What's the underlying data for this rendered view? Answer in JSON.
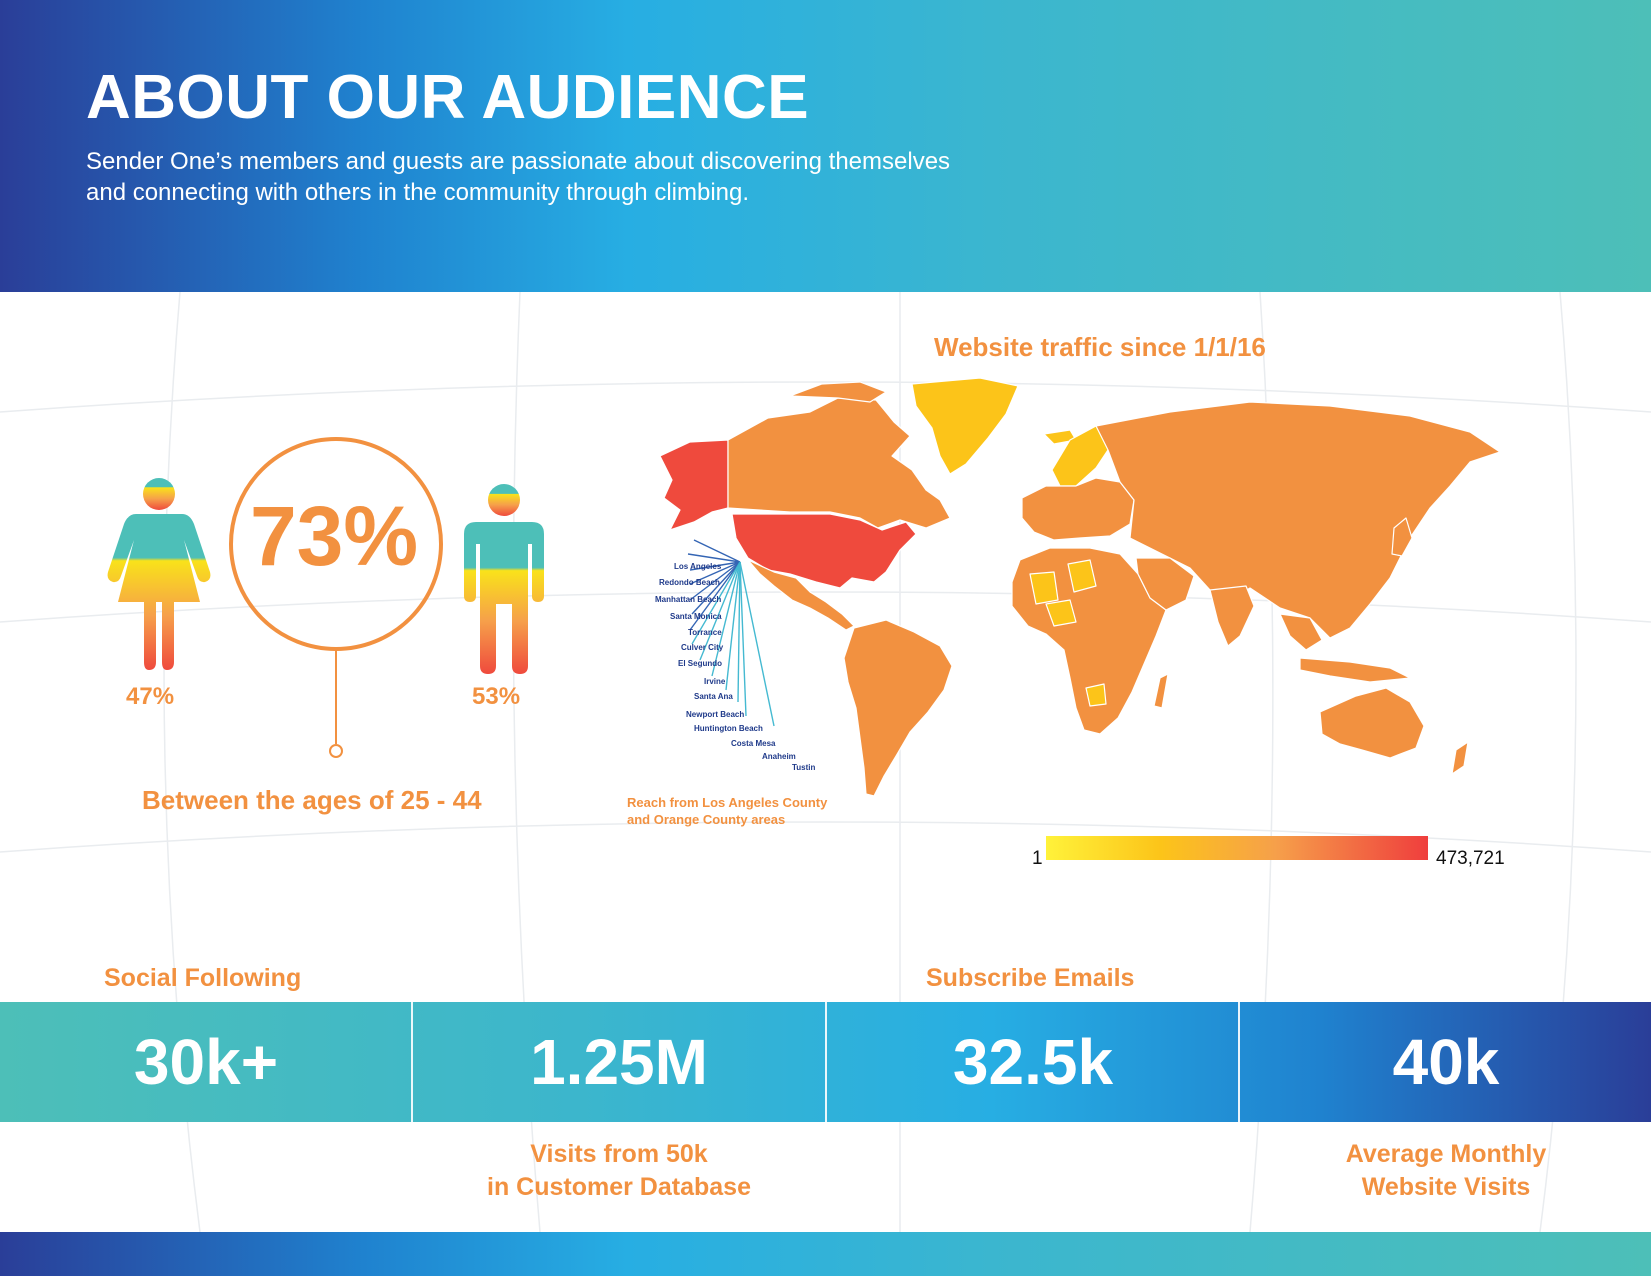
{
  "header": {
    "title": "ABOUT OUR AUDIENCE",
    "subtitle": "Sender One’s members and guests are passionate about discovering themselves and connecting with others in the community through climbing."
  },
  "demographics": {
    "age_percent": "73%",
    "female_percent": "47%",
    "male_percent": "53%",
    "age_caption": "Between the ages of 25 - 44"
  },
  "map": {
    "title": "Website traffic since 1/1/16",
    "cities": [
      "Los Angeles",
      "Redondo Beach",
      "Manhattan Beach",
      "Santa Monica",
      "Torrance",
      "Culver City",
      "El Segundo",
      "Irvine",
      "Santa Ana",
      "Newport Beach",
      "Huntington Beach",
      "Costa Mesa",
      "Anaheim",
      "Tustin"
    ],
    "reach_line1": "Reach from Los Angeles County",
    "reach_line2": "and Orange County areas",
    "legend_min": "1",
    "legend_max": "473,721",
    "colors": {
      "low": "#fff23a",
      "mid": "#f6a04a",
      "high": "#ef3e3d"
    }
  },
  "stats": {
    "social_label": "Social Following",
    "emails_label": "Subscribe Emails",
    "visits_label_line1": "Visits from 50k",
    "visits_label_line2": "in Customer Database",
    "monthly_label_line1": "Average Monthly",
    "monthly_label_line2": "Website Visits",
    "values": [
      "30k+",
      "1.25M",
      "32.5k",
      "40k"
    ]
  },
  "colors": {
    "accent_orange": "#f29140",
    "teal": "#4dbfb8",
    "navy": "#2a3e98"
  }
}
